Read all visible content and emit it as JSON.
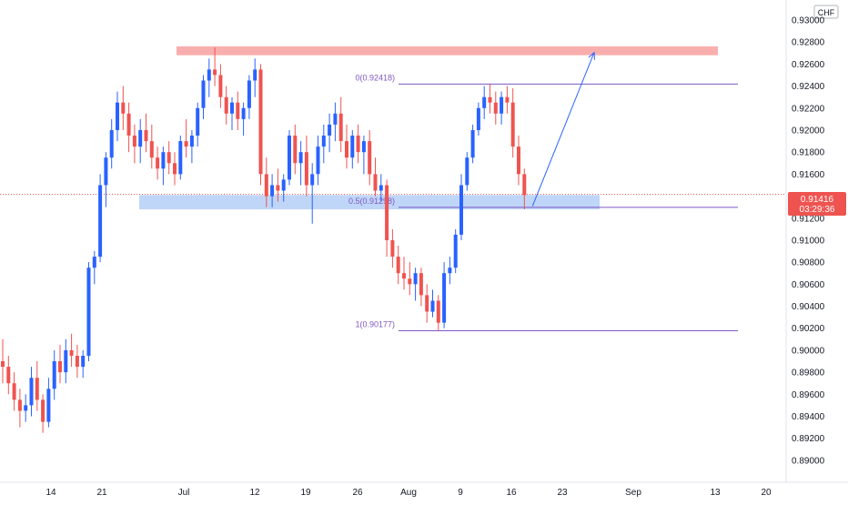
{
  "chart_data": {
    "type": "candlestick",
    "currency": "CHF",
    "ylim": [
      0.889,
      0.93
    ],
    "y_ticks": [
      "0.93000",
      "0.92800",
      "0.92600",
      "0.92400",
      "0.92200",
      "0.92000",
      "0.91800",
      "0.91600",
      "0.91400",
      "0.91200",
      "0.91000",
      "0.90800",
      "0.90600",
      "0.90400",
      "0.90200",
      "0.90000",
      "0.89800",
      "0.89600",
      "0.89400",
      "0.89200",
      "0.89000"
    ],
    "x_ticks": [
      "14",
      "21",
      "Jul",
      "12",
      "19",
      "26",
      "Aug",
      "9",
      "16",
      "23",
      "Sep",
      "13",
      "20"
    ],
    "last_price": {
      "value": "0.91416",
      "countdown": "03:29:36"
    },
    "colors": {
      "up": "#2962ff",
      "down": "#ef5350",
      "fib": "#7e57c2",
      "resistance": "#f8a0a0",
      "support": "#a9c8f5",
      "arrow": "#2962ff",
      "price_line": "#ef5350"
    },
    "fibonacci": [
      {
        "label": "0(0.92418)",
        "value": 0.92418
      },
      {
        "label": "0.5(0.91298)",
        "value": 0.91298
      },
      {
        "label": "1(0.90177)",
        "value": 0.90177
      }
    ],
    "zones": [
      {
        "name": "resistance",
        "from": 0.9268,
        "to": 0.9276
      },
      {
        "name": "support",
        "from": 0.9128,
        "to": 0.9141
      }
    ],
    "arrow": {
      "from": 0.9131,
      "to": 0.9268
    },
    "candles": [
      [
        0.899,
        0.901,
        0.897,
        0.8985
      ],
      [
        0.8985,
        0.8995,
        0.896,
        0.897
      ],
      [
        0.897,
        0.898,
        0.8945,
        0.8955
      ],
      [
        0.8955,
        0.8965,
        0.893,
        0.8945
      ],
      [
        0.8945,
        0.896,
        0.8935,
        0.895
      ],
      [
        0.895,
        0.8985,
        0.894,
        0.8975
      ],
      [
        0.8975,
        0.899,
        0.8945,
        0.8955
      ],
      [
        0.8955,
        0.896,
        0.8925,
        0.8935
      ],
      [
        0.8935,
        0.8975,
        0.893,
        0.8965
      ],
      [
        0.8965,
        0.9,
        0.8955,
        0.899
      ],
      [
        0.899,
        0.9005,
        0.897,
        0.898
      ],
      [
        0.898,
        0.901,
        0.897,
        0.9
      ],
      [
        0.9,
        0.9015,
        0.8985,
        0.8995
      ],
      [
        0.8995,
        0.9005,
        0.8975,
        0.8985
      ],
      [
        0.8985,
        0.9,
        0.8975,
        0.8995
      ],
      [
        0.8995,
        0.908,
        0.899,
        0.9075
      ],
      [
        0.9075,
        0.909,
        0.906,
        0.9085
      ],
      [
        0.9085,
        0.916,
        0.908,
        0.915
      ],
      [
        0.915,
        0.918,
        0.913,
        0.9175
      ],
      [
        0.9175,
        0.921,
        0.9165,
        0.92
      ],
      [
        0.92,
        0.9235,
        0.919,
        0.9225
      ],
      [
        0.9225,
        0.924,
        0.92,
        0.9215
      ],
      [
        0.9215,
        0.9225,
        0.918,
        0.9195
      ],
      [
        0.9195,
        0.9205,
        0.917,
        0.9185
      ],
      [
        0.9185,
        0.921,
        0.917,
        0.92
      ],
      [
        0.92,
        0.9215,
        0.918,
        0.919
      ],
      [
        0.919,
        0.9205,
        0.9165,
        0.9175
      ],
      [
        0.9175,
        0.9185,
        0.9155,
        0.9165
      ],
      [
        0.9165,
        0.9185,
        0.915,
        0.918
      ],
      [
        0.918,
        0.919,
        0.916,
        0.917
      ],
      [
        0.917,
        0.918,
        0.915,
        0.916
      ],
      [
        0.916,
        0.9195,
        0.9155,
        0.919
      ],
      [
        0.919,
        0.921,
        0.9175,
        0.9185
      ],
      [
        0.9185,
        0.92,
        0.917,
        0.9195
      ],
      [
        0.9195,
        0.9225,
        0.9185,
        0.922
      ],
      [
        0.922,
        0.925,
        0.921,
        0.9245
      ],
      [
        0.9245,
        0.9265,
        0.923,
        0.9255
      ],
      [
        0.9255,
        0.9275,
        0.924,
        0.925
      ],
      [
        0.925,
        0.926,
        0.922,
        0.923
      ],
      [
        0.923,
        0.924,
        0.9205,
        0.9215
      ],
      [
        0.9215,
        0.923,
        0.92,
        0.9225
      ],
      [
        0.9225,
        0.9235,
        0.92,
        0.921
      ],
      [
        0.921,
        0.9225,
        0.9195,
        0.922
      ],
      [
        0.922,
        0.925,
        0.921,
        0.9245
      ],
      [
        0.9245,
        0.9265,
        0.923,
        0.9255
      ],
      [
        0.9255,
        0.926,
        0.915,
        0.916
      ],
      [
        0.916,
        0.9175,
        0.913,
        0.914
      ],
      [
        0.914,
        0.916,
        0.913,
        0.915
      ],
      [
        0.915,
        0.9165,
        0.9135,
        0.9145
      ],
      [
        0.9145,
        0.916,
        0.9135,
        0.9155
      ],
      [
        0.9155,
        0.92,
        0.915,
        0.9195
      ],
      [
        0.9195,
        0.9205,
        0.916,
        0.917
      ],
      [
        0.917,
        0.919,
        0.915,
        0.918
      ],
      [
        0.918,
        0.9195,
        0.914,
        0.915
      ],
      [
        0.915,
        0.917,
        0.9115,
        0.916
      ],
      [
        0.916,
        0.9195,
        0.915,
        0.9185
      ],
      [
        0.9185,
        0.9205,
        0.917,
        0.9195
      ],
      [
        0.9195,
        0.9215,
        0.918,
        0.9205
      ],
      [
        0.9205,
        0.9225,
        0.919,
        0.9215
      ],
      [
        0.9215,
        0.923,
        0.918,
        0.919
      ],
      [
        0.919,
        0.9205,
        0.9165,
        0.9175
      ],
      [
        0.9175,
        0.92,
        0.9165,
        0.9195
      ],
      [
        0.9195,
        0.9205,
        0.917,
        0.918
      ],
      [
        0.918,
        0.9195,
        0.916,
        0.919
      ],
      [
        0.919,
        0.92,
        0.915,
        0.916
      ],
      [
        0.916,
        0.9175,
        0.914,
        0.9145
      ],
      [
        0.9145,
        0.916,
        0.9135,
        0.915
      ],
      [
        0.915,
        0.9155,
        0.9085,
        0.91
      ],
      [
        0.91,
        0.911,
        0.9075,
        0.9085
      ],
      [
        0.9085,
        0.9095,
        0.906,
        0.907
      ],
      [
        0.907,
        0.9085,
        0.9055,
        0.9065
      ],
      [
        0.9065,
        0.908,
        0.905,
        0.906
      ],
      [
        0.906,
        0.9075,
        0.9045,
        0.907
      ],
      [
        0.907,
        0.9075,
        0.904,
        0.905
      ],
      [
        0.905,
        0.906,
        0.9025,
        0.9035
      ],
      [
        0.9035,
        0.9055,
        0.903,
        0.9045
      ],
      [
        0.9045,
        0.905,
        0.9018,
        0.9025
      ],
      [
        0.9025,
        0.908,
        0.902,
        0.907
      ],
      [
        0.907,
        0.9085,
        0.906,
        0.9075
      ],
      [
        0.9075,
        0.911,
        0.907,
        0.9105
      ],
      [
        0.9105,
        0.916,
        0.91,
        0.915
      ],
      [
        0.915,
        0.918,
        0.9145,
        0.9175
      ],
      [
        0.9175,
        0.9205,
        0.917,
        0.92
      ],
      [
        0.92,
        0.9225,
        0.9195,
        0.922
      ],
      [
        0.922,
        0.924,
        0.921,
        0.923
      ],
      [
        0.923,
        0.9242,
        0.9215,
        0.9225
      ],
      [
        0.9225,
        0.9235,
        0.9205,
        0.9215
      ],
      [
        0.9215,
        0.9235,
        0.9205,
        0.923
      ],
      [
        0.923,
        0.924,
        0.9215,
        0.9225
      ],
      [
        0.9225,
        0.9238,
        0.9175,
        0.9185
      ],
      [
        0.9185,
        0.9195,
        0.915,
        0.916
      ],
      [
        0.916,
        0.9165,
        0.9128,
        0.9141
      ]
    ]
  }
}
